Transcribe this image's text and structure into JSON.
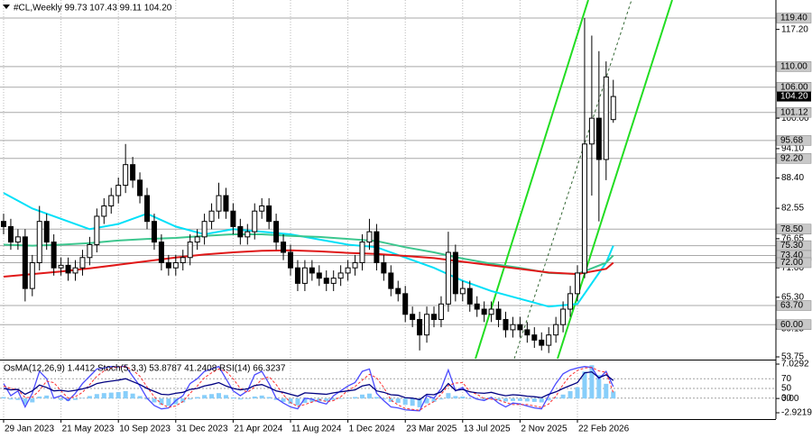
{
  "chart_data": [
    {
      "type": "candlestick",
      "title": "#CL,Weekly  99.73 107.43 99.11 104.20",
      "x": [
        "29 Jan 2023",
        "12 Feb 2023",
        "26 Feb 2023",
        "12 Mar 2023",
        "26 Mar 2023",
        "9 Apr 2023",
        "23 Apr 2023",
        "7 May 2023",
        "21 May 2023",
        "4 Jun 2023",
        "18 Jun 2023",
        "2 Jul 2023",
        "16 Jul 2023",
        "30 Jul 2023",
        "13 Aug 2023",
        "27 Aug 2023",
        "10 Sep 2023",
        "24 Sep 2023",
        "8 Oct 2023",
        "22 Oct 2023",
        "5 Nov 2023",
        "19 Nov 2023",
        "3 Dec 2023",
        "17 Dec 2023",
        "31 Dec 2023",
        "14 Jan 2024",
        "28 Jan 2024",
        "11 Feb 2024",
        "25 Feb 2024",
        "10 Mar 2024",
        "24 Mar 2024",
        "7 Apr 2024",
        "21 Apr 2024",
        "5 May 2024",
        "19 May 2024",
        "2 Jun 2024",
        "16 Jun 2024",
        "30 Jun 2024",
        "14 Jul 2024",
        "28 Jul 2024",
        "11 Aug 2024",
        "25 Aug 2024",
        "8 Sep 2024",
        "22 Sep 2024",
        "6 Oct 2024",
        "20 Oct 2024",
        "3 Nov 2024",
        "17 Nov 2024",
        "1 Dec 2024",
        "15 Dec 2024",
        "29 Dec 2024",
        "12 Jan 2025",
        "26 Jan 2025",
        "9 Feb 2025",
        "23 Feb 2025",
        "9 Mar 2025",
        "23 Mar 2025",
        "6 Apr 2025",
        "20 Apr 2025",
        "4 May 2025",
        "18 May 2025",
        "1 Jun 2025",
        "15 Jun 2025",
        "29 Jun 2025",
        "13 Jul 2025",
        "27 Jul 2025",
        "10 Aug 2025",
        "24 Aug 2025",
        "7 Sep 2025",
        "21 Sep 2025",
        "5 Oct 2025",
        "19 Oct 2025",
        "2 Nov 2025",
        "16 Nov 2025",
        "30 Nov 2025",
        "14 Dec 2025",
        "28 Dec 2025",
        "11 Jan 2026",
        "25 Jan 2026",
        "8 Feb 2026",
        "22 Feb 2026",
        "8 Mar 2026",
        "22 Mar 2026",
        "5 Apr 2026",
        "19 Apr 2026",
        "3 May 2026"
      ],
      "open": [
        80,
        79,
        76,
        77,
        67,
        72,
        80,
        76,
        71,
        71.5,
        70,
        71,
        73,
        75.5,
        81,
        83,
        85,
        87,
        91,
        88,
        85,
        80,
        76,
        72,
        71,
        72,
        73,
        76,
        77,
        80,
        82,
        85,
        82,
        79,
        77,
        78,
        82,
        83,
        80,
        76,
        74,
        71,
        68,
        71,
        70,
        69,
        68,
        69,
        70,
        71,
        72,
        76,
        78,
        72,
        70,
        67,
        66,
        62,
        61,
        58,
        62,
        61,
        64,
        74,
        66,
        67,
        64,
        63,
        62,
        63,
        61,
        59,
        60,
        59,
        58,
        57,
        56,
        58,
        60,
        63,
        66,
        70,
        95,
        100,
        92,
        99.73
      ],
      "high": [
        81.5,
        80.5,
        78.5,
        78.5,
        73.5,
        83,
        81.5,
        77.5,
        73,
        73,
        72.5,
        74.5,
        77,
        82.5,
        84.5,
        86.5,
        88.5,
        95,
        92.5,
        89.5,
        86.5,
        81.5,
        77.5,
        73.5,
        73.5,
        74.5,
        77.5,
        78.5,
        81.5,
        83.5,
        87.5,
        86.5,
        83.5,
        80.5,
        79.5,
        83.5,
        84.5,
        84.5,
        81.5,
        77.5,
        75.5,
        72.5,
        72.5,
        72.5,
        71.5,
        70.5,
        70.5,
        71.5,
        72.5,
        73.5,
        77.5,
        80.5,
        79.5,
        73.5,
        71.5,
        68.5,
        67.5,
        63.5,
        62.5,
        63.5,
        63.5,
        65.5,
        78,
        75.5,
        68.5,
        68.5,
        65.5,
        64.5,
        64.5,
        64.5,
        62.5,
        61.5,
        61.5,
        60.5,
        59.5,
        58.5,
        59.5,
        61.5,
        64.5,
        67.5,
        71.5,
        119.4,
        116,
        113,
        111,
        107.43
      ],
      "low": [
        77.5,
        74.5,
        74.5,
        64.5,
        65.5,
        70.5,
        74.5,
        69.5,
        69.5,
        68.5,
        68.5,
        69.5,
        71.5,
        74,
        79.5,
        81.5,
        83.5,
        85.5,
        86.5,
        83.5,
        78.5,
        74.5,
        70.5,
        69.5,
        69.5,
        70.5,
        71.5,
        74.5,
        75.5,
        78.5,
        80.5,
        80.5,
        77.5,
        75.5,
        75.5,
        76.5,
        80.5,
        78.5,
        74.5,
        72.5,
        69.5,
        66.5,
        66.5,
        68.5,
        67.5,
        66.5,
        66.5,
        67.5,
        68.5,
        69.5,
        70.5,
        74.5,
        70.5,
        68.5,
        65.5,
        64.5,
        60.5,
        59.5,
        55,
        56.5,
        59.5,
        59.5,
        62.5,
        64.5,
        64.5,
        62.5,
        61.5,
        60.5,
        60.5,
        59.5,
        57.5,
        57.5,
        57.5,
        56.5,
        55.5,
        55,
        54.5,
        56.5,
        58.5,
        61.5,
        64.5,
        69,
        85,
        80,
        88,
        99.11
      ],
      "close": [
        79,
        76,
        77,
        67,
        72,
        80,
        76,
        71,
        71.5,
        70,
        71,
        73,
        75.5,
        81,
        83,
        85,
        87,
        91,
        88,
        85,
        80,
        76,
        72,
        71,
        72,
        73,
        76,
        77,
        80,
        82,
        85,
        82,
        79,
        77,
        78,
        82,
        83,
        80,
        76,
        74,
        71,
        68,
        71,
        70,
        69,
        68,
        69,
        70,
        71,
        72,
        76,
        78,
        72,
        70,
        67,
        66,
        62,
        61,
        58,
        62,
        61,
        64,
        74,
        66,
        67,
        64,
        63,
        62,
        63,
        61,
        59,
        60,
        59,
        58,
        57,
        56,
        58,
        60,
        63,
        66,
        70,
        95,
        100,
        92,
        108,
        104.2
      ],
      "up_color": "#ffffff",
      "down_color": "#000000",
      "outline_color": "#000000",
      "series": [
        {
          "color": "#00e0f8",
          "x": [
            "29 Jan 2023",
            "26 Mar 2023",
            "21 May 2023",
            "16 Jul 2023",
            "10 Sep 2023",
            "5 Nov 2023",
            "31 Dec 2023",
            "25 Feb 2024",
            "21 Apr 2024",
            "16 Jun 2024",
            "11 Aug 2024",
            "6 Oct 2024",
            "1 Dec 2024",
            "26 Jan 2025",
            "23 Mar 2025",
            "18 May 2025",
            "13 Jul 2025",
            "7 Sep 2025",
            "2 Nov 2025",
            "28 Dec 2025",
            "22 Feb 2026",
            "19 Apr 2026",
            "3 May 2026"
          ],
          "values": [
            85.5,
            82.5,
            80.5,
            78.5,
            79.5,
            81.5,
            79,
            77.5,
            78.5,
            78,
            77.5,
            76.5,
            75.5,
            75,
            73,
            71,
            68.5,
            66.5,
            65,
            63.5,
            64,
            72,
            75.3
          ]
        },
        {
          "color": "#3cc68e",
          "x": [
            "29 Jan 2023",
            "26 Mar 2023",
            "21 May 2023",
            "16 Jul 2023",
            "10 Sep 2023",
            "5 Nov 2023",
            "31 Dec 2023",
            "25 Feb 2024",
            "21 Apr 2024",
            "16 Jun 2024",
            "11 Aug 2024",
            "6 Oct 2024",
            "1 Dec 2024",
            "26 Jan 2025",
            "23 Mar 2025",
            "18 May 2025",
            "13 Jul 2025",
            "7 Sep 2025",
            "2 Nov 2025",
            "28 Dec 2025",
            "22 Feb 2026",
            "19 Apr 2026",
            "3 May 2026"
          ],
          "values": [
            75.5,
            75.3,
            75.5,
            75.8,
            76.3,
            76.6,
            76.8,
            77.2,
            77.5,
            77.5,
            77.2,
            77,
            76.6,
            76.2,
            75,
            74,
            72.8,
            71.8,
            71,
            70,
            69.8,
            72,
            73.4
          ]
        },
        {
          "color": "#e01818",
          "x": [
            "29 Jan 2023",
            "26 Mar 2023",
            "21 May 2023",
            "16 Jul 2023",
            "10 Sep 2023",
            "5 Nov 2023",
            "31 Dec 2023",
            "25 Feb 2024",
            "21 Apr 2024",
            "16 Jun 2024",
            "11 Aug 2024",
            "6 Oct 2024",
            "1 Dec 2024",
            "26 Jan 2025",
            "23 Mar 2025",
            "18 May 2025",
            "13 Jul 2025",
            "7 Sep 2025",
            "2 Nov 2025",
            "28 Dec 2025",
            "22 Feb 2026",
            "19 Apr 2026",
            "3 May 2026"
          ],
          "values": [
            69.3,
            69.8,
            70.3,
            70.9,
            71.6,
            72.3,
            73,
            73.6,
            74,
            74.3,
            74.4,
            74.2,
            73.9,
            73.7,
            73.3,
            72.9,
            72.2,
            71.5,
            70.8,
            70.1,
            69.8,
            70.8,
            72
          ]
        }
      ],
      "ylim": [
        53.4,
        122.9
      ],
      "yticks": [
        {
          "value": 117.2,
          "label": "117.20"
        },
        {
          "value": 100,
          "label": "100.00"
        },
        {
          "value": 94.1,
          "label": "94.10"
        },
        {
          "value": 88.4,
          "label": "88.40"
        },
        82.55,
        76.65,
        {
          "value": 71,
          "label": "71.00"
        },
        {
          "value": 65.3,
          "label": "65.30"
        },
        59.15,
        53.75
      ],
      "levels": [
        {
          "value": 119.4,
          "label": "119.40"
        },
        {
          "value": 110,
          "label": "110.00"
        },
        {
          "value": 106,
          "label": "106.00"
        },
        101.12,
        95.68,
        {
          "value": 92.2,
          "label": "92.20"
        },
        {
          "value": 78.5,
          "label": "78.50"
        },
        {
          "value": 75.3,
          "label": "75.30"
        },
        {
          "value": 73.4,
          "label": "73.40"
        },
        {
          "value": 72,
          "label": "72.00"
        },
        {
          "value": 63.7,
          "label": "63.70"
        },
        {
          "value": 60,
          "label": "60.00"
        }
      ],
      "current_price": {
        "value": 104.2,
        "label": "104.20"
      },
      "xticks": [
        "29 Jan 2023",
        "21 May 2023",
        "10 Sep 2023",
        "31 Dec 2023",
        "21 Apr 2024",
        "11 Aug 2024",
        "1 Dec 2024",
        "23 Mar 2025",
        "13 Jul 2025",
        "2 Nov 2025",
        "22 Feb 2026"
      ],
      "grid": true
    },
    {
      "type": "bar",
      "title": "OsMA(12,26,9) 1.4412  Stoch(5,3,3) 53.8787 41.2408  RSI(14) 66.3237",
      "values": [
        0.3,
        -0.2,
        -0.3,
        -1.2,
        -0.8,
        0.4,
        0.6,
        0.1,
        -0.3,
        -0.5,
        -0.3,
        0.1,
        0.5,
        0.9,
        1.1,
        1.2,
        1.3,
        1.5,
        1.0,
        0.5,
        -0.2,
        -0.8,
        -1.3,
        -1.5,
        -1.2,
        -0.8,
        -0.2,
        0.3,
        0.7,
        0.9,
        1.1,
        0.7,
        0.2,
        -0.2,
        -0.1,
        0.4,
        0.6,
        0.3,
        -0.3,
        -0.7,
        -1.1,
        -1.4,
        -0.9,
        -0.7,
        -0.6,
        -0.6,
        -0.3,
        -0.1,
        0.1,
        0.3,
        0.8,
        1.0,
        0.3,
        -0.2,
        -0.7,
        -0.9,
        -1.3,
        -1.5,
        -1.8,
        -1.0,
        -0.7,
        -0.2,
        1.1,
        0.5,
        0.4,
        0.0,
        -0.2,
        -0.3,
        -0.2,
        -0.4,
        -0.6,
        -0.5,
        -0.5,
        -0.6,
        -0.7,
        -0.8,
        -0.4,
        0.2,
        0.8,
        1.5,
        2.3,
        5.5,
        6.8,
        4.8,
        3.0,
        1.4412
      ],
      "color": "#87cefa",
      "series": [
        {
          "color": "#4b4bff",
          "axis": "y2",
          "values": [
            60,
            35,
            45,
            12,
            40,
            85,
            70,
            30,
            35,
            25,
            40,
            60,
            75,
            90,
            92,
            95,
            94,
            96,
            75,
            55,
            30,
            15,
            8,
            10,
            25,
            35,
            60,
            70,
            85,
            90,
            95,
            70,
            45,
            35,
            45,
            78,
            85,
            60,
            30,
            20,
            12,
            8,
            30,
            28,
            22,
            18,
            35,
            45,
            55,
            62,
            85,
            90,
            40,
            25,
            12,
            10,
            6,
            5,
            4,
            35,
            30,
            50,
            88,
            45,
            52,
            35,
            28,
            25,
            32,
            20,
            12,
            20,
            18,
            14,
            10,
            8,
            35,
            60,
            80,
            88,
            92,
            95,
            93,
            70,
            85,
            53.8787
          ]
        },
        {
          "color": "#ff3030",
          "axis": "y2",
          "style": "dashed",
          "values": [
            55,
            50,
            47,
            31,
            32,
            46,
            65,
            62,
            45,
            30,
            33,
            42,
            58,
            75,
            86,
            92,
            94,
            95,
            88,
            75,
            53,
            33,
            18,
            11,
            14,
            23,
            40,
            55,
            72,
            82,
            90,
            85,
            70,
            50,
            42,
            53,
            69,
            74,
            58,
            37,
            21,
            13,
            17,
            22,
            27,
            23,
            25,
            33,
            46,
            54,
            67,
            79,
            72,
            52,
            26,
            16,
            9,
            7,
            5,
            15,
            23,
            38,
            56,
            61,
            62,
            44,
            38,
            29,
            28,
            26,
            21,
            17,
            17,
            17,
            14,
            11,
            18,
            34,
            58,
            76,
            87,
            92,
            93,
            86,
            83,
            41.2408
          ]
        },
        {
          "color": "#000080",
          "axis": "y2",
          "values": [
            50,
            47,
            48,
            38,
            45,
            57,
            52,
            45,
            46,
            44,
            46,
            49,
            53,
            60,
            63,
            65,
            67,
            70,
            64,
            58,
            50,
            44,
            38,
            37,
            40,
            42,
            48,
            50,
            55,
            58,
            62,
            55,
            50,
            47,
            49,
            56,
            58,
            52,
            45,
            42,
            38,
            34,
            41,
            40,
            39,
            38,
            41,
            43,
            45,
            47,
            55,
            58,
            45,
            42,
            37,
            36,
            31,
            30,
            27,
            38,
            37,
            43,
            60,
            46,
            48,
            43,
            41,
            40,
            42,
            38,
            35,
            37,
            36,
            34,
            33,
            31,
            38,
            43,
            50,
            56,
            62,
            82,
            84,
            72,
            78,
            66.3237
          ]
        }
      ],
      "ylim": [
        -2.9219,
        7.0292
      ],
      "yticks": [
        7.0292,
        {
          "value": 0,
          "label": "0.00"
        },
        -2.9219
      ],
      "y2lim": [
        0,
        100
      ],
      "y2ticks": [
        70,
        50,
        30
      ]
    }
  ]
}
